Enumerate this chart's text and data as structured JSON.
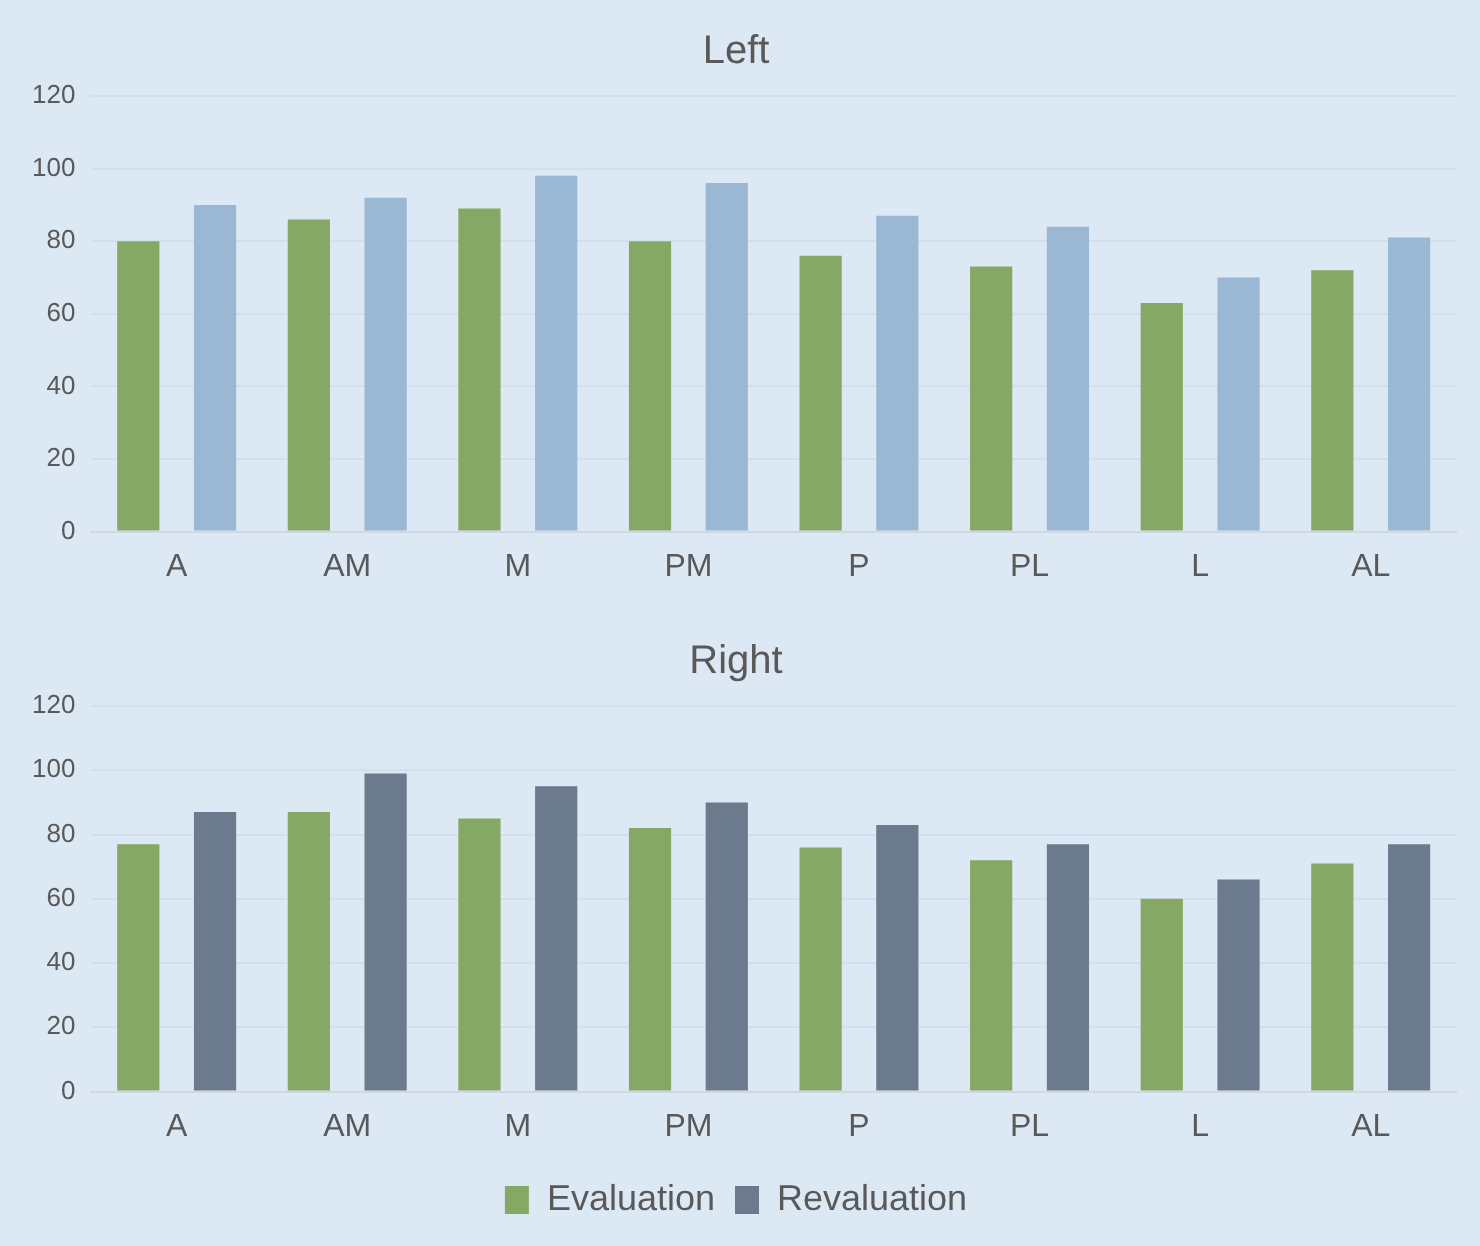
{
  "chart_data": [
    {
      "type": "bar",
      "title": "Left",
      "categories": [
        "A",
        "AM",
        "M",
        "PM",
        "P",
        "PL",
        "L",
        "AL"
      ],
      "series": [
        {
          "color": "#86a865",
          "values": [
            80,
            86,
            89,
            80,
            76,
            73,
            63,
            72
          ]
        },
        {
          "color": "#9ab7d3",
          "values": [
            90,
            92,
            98,
            96,
            87,
            84,
            70,
            81
          ]
        }
      ],
      "ylim": [
        0,
        120
      ],
      "yticks": [
        0,
        20,
        40,
        60,
        80,
        100,
        120
      ],
      "grid": "y",
      "legend": false
    },
    {
      "type": "bar",
      "title": "Right",
      "categories": [
        "A",
        "AM",
        "M",
        "PM",
        "P",
        "PL",
        "L",
        "AL"
      ],
      "series": [
        {
          "name": "Evaluation",
          "color": "#86a865",
          "values": [
            77,
            87,
            85,
            82,
            76,
            72,
            60,
            71
          ]
        },
        {
          "name": "Revaluation",
          "color": "#6b7a8c",
          "values": [
            87,
            99,
            95,
            90,
            83,
            77,
            66,
            77
          ]
        }
      ],
      "ylim": [
        0,
        120
      ],
      "yticks": [
        0,
        20,
        40,
        60,
        80,
        100,
        120
      ],
      "grid": "y",
      "legend": "bottom"
    }
  ]
}
